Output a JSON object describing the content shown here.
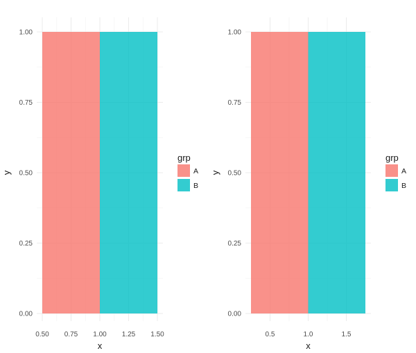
{
  "chart_data": [
    {
      "type": "bar",
      "xlabel": "x",
      "ylabel": "y",
      "xlim": [
        0.5,
        1.5
      ],
      "ylim": [
        0,
        1
      ],
      "x_ticks": [
        0.5,
        0.75,
        1.0,
        1.25,
        1.5
      ],
      "x_tick_labels": [
        "0.50",
        "0.75",
        "1.00",
        "1.25",
        "1.50"
      ],
      "y_ticks": [
        0,
        0.25,
        0.5,
        0.75,
        1.0
      ],
      "y_tick_labels": [
        "0.00",
        "0.25",
        "0.50",
        "0.75",
        "1.00"
      ],
      "grid": true,
      "legend": {
        "title": "grp",
        "position": "right"
      },
      "series": [
        {
          "name": "A",
          "color": "#F8766D",
          "x_start": 0.5,
          "x_end": 1.0,
          "y": 1.0
        },
        {
          "name": "B",
          "color": "#00BFC4",
          "x_start": 1.0,
          "x_end": 1.5,
          "y": 1.0
        }
      ]
    },
    {
      "type": "bar",
      "xlabel": "x",
      "ylabel": "y",
      "xlim": [
        0.25,
        1.75
      ],
      "ylim": [
        0,
        1
      ],
      "x_ticks": [
        0.5,
        1.0,
        1.5
      ],
      "x_tick_labels": [
        "0.5",
        "1.0",
        "1.5"
      ],
      "y_ticks": [
        0,
        0.25,
        0.5,
        0.75,
        1.0
      ],
      "y_tick_labels": [
        "0.00",
        "0.25",
        "0.50",
        "0.75",
        "1.00"
      ],
      "grid": true,
      "legend": {
        "title": "grp",
        "position": "right"
      },
      "series": [
        {
          "name": "A",
          "color": "#F8766D",
          "x_start": 0.25,
          "x_end": 1.0,
          "y": 1.0
        },
        {
          "name": "B",
          "color": "#00BFC4",
          "x_start": 1.0,
          "x_end": 1.75,
          "y": 1.0
        }
      ]
    }
  ]
}
